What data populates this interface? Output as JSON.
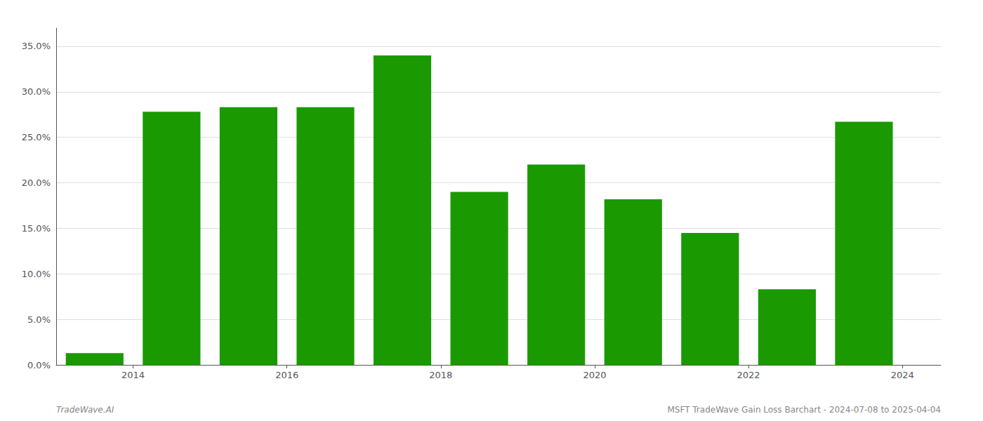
{
  "chart_data": {
    "type": "bar",
    "x": [
      2013.5,
      2014.5,
      2015.5,
      2016.5,
      2017.5,
      2018.5,
      2019.5,
      2020.5,
      2021.5,
      2022.5,
      2023.5
    ],
    "values": [
      0.013,
      0.278,
      0.283,
      0.283,
      0.34,
      0.19,
      0.22,
      0.182,
      0.145,
      0.083,
      0.267
    ],
    "color": "#1a9a00",
    "xlim": [
      2013.0,
      2024.5
    ],
    "xticks": [
      2014,
      2016,
      2018,
      2020,
      2022,
      2024
    ],
    "ylim": [
      0,
      0.37
    ],
    "yticks": [
      {
        "value": 0.0,
        "label": "0.0%"
      },
      {
        "value": 0.05,
        "label": "5.0%"
      },
      {
        "value": 0.1,
        "label": "10.0%"
      },
      {
        "value": 0.15,
        "label": "15.0%"
      },
      {
        "value": 0.2,
        "label": "20.0%"
      },
      {
        "value": 0.25,
        "label": "25.0%"
      },
      {
        "value": 0.3,
        "label": "30.0%"
      },
      {
        "value": 0.35,
        "label": "35.0%"
      }
    ],
    "grid": true,
    "annotations": [
      "TradeWave.AI",
      "MSFT TradeWave Gain Loss Barchart - 2024-07-08 to 2025-04-04"
    ]
  }
}
